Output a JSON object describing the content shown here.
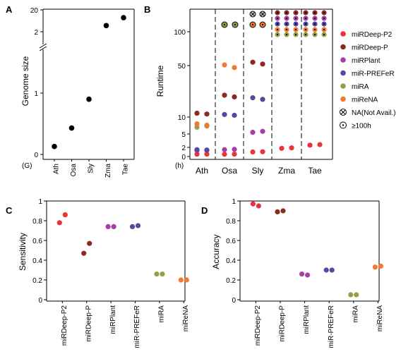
{
  "chart_data": [
    {
      "panel": "A",
      "type": "scatter",
      "ylabel": "Genome size",
      "unit": "(G)",
      "categories": [
        "Ath",
        "Osa",
        "Sly",
        "Zma",
        "Tae"
      ],
      "values": [
        0.13,
        0.43,
        0.9,
        2.1,
        17.0
      ],
      "y_ticks": [
        "0",
        "1",
        "2",
        "20"
      ],
      "axis_break": true,
      "color": "#000000"
    },
    {
      "panel": "B",
      "type": "scatter",
      "ylabel": "Runtime",
      "unit": "(h)",
      "categories": [
        "Ath",
        "Osa",
        "Sly",
        "Zma",
        "Tae"
      ],
      "y_ticks": [
        "0",
        "2",
        "5",
        "10",
        "50",
        "100"
      ],
      "series": [
        {
          "name": "miRDeep-P2",
          "color": "#e8333a",
          "values": [
            0.5,
            0.5,
            1.0,
            1.8,
            2.5
          ]
        },
        {
          "name": "miRDeep-P",
          "color": "#8c2a22",
          "values": [
            13,
            27,
            55,
            135,
            135
          ]
        },
        {
          "name": "miRPlant",
          "color": "#a63ea8",
          "values": [
            1.3,
            1.5,
            5.5,
            118,
            118
          ]
        },
        {
          "name": "miR-PREFeR",
          "color": "#504aa0",
          "values": [
            1.5,
            12,
            25,
            110,
            110
          ]
        },
        {
          "name": "miRA",
          "color": "#9a9c4a",
          "values": [
            7,
            null,
            null,
            93,
            93
          ]
        },
        {
          "name": "miReNA",
          "color": "#ef7a31",
          "values": [
            8,
            51,
            null,
            101,
            101
          ]
        }
      ],
      "special_markers": [
        {
          "label": "NA(Not Avail.)",
          "symbol": "circle-x"
        },
        {
          "label": "≥100h",
          "symbol": "circle-dot"
        }
      ]
    },
    {
      "panel": "C",
      "type": "scatter",
      "ylabel": "Sensitivity",
      "categories": [
        "miRDeep-P2",
        "miRDeep-P",
        "miRPlant",
        "miR-PREFeR",
        "miRA",
        "miReNA"
      ],
      "values": [
        [
          0.78,
          0.86
        ],
        [
          0.47,
          0.57
        ],
        [
          0.74,
          0.74
        ],
        [
          0.74,
          0.75
        ],
        [
          0.26,
          0.26
        ],
        [
          0.2,
          0.2
        ]
      ],
      "y_ticks": [
        "0",
        "0.2",
        "0.4",
        "0.6",
        "0.8",
        "1"
      ],
      "ylim": [
        0,
        1
      ]
    },
    {
      "panel": "D",
      "type": "scatter",
      "ylabel": "Accuracy",
      "categories": [
        "miRDeep-P2",
        "miRDeep-P",
        "miRPlant",
        "miR-PREFeR",
        "miRA",
        "miReNA"
      ],
      "values": [
        [
          0.97,
          0.95
        ],
        [
          0.89,
          0.9
        ],
        [
          0.26,
          0.25
        ],
        [
          0.3,
          0.3
        ],
        [
          0.05,
          0.05
        ],
        [
          0.33,
          0.34
        ]
      ],
      "y_ticks": [
        "0",
        "0.2",
        "0.4",
        "0.6",
        "0.8",
        "1"
      ],
      "ylim": [
        0,
        1
      ]
    }
  ]
}
